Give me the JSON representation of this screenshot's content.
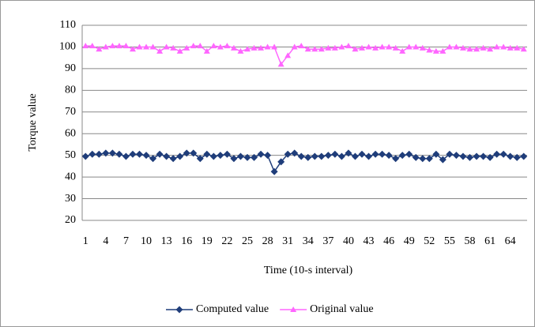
{
  "chart_data": {
    "type": "line",
    "x_label": "Time (10-s interval)",
    "y_label": "Torque value",
    "categories": [
      1,
      null,
      null,
      4,
      null,
      null,
      7,
      null,
      null,
      10,
      null,
      null,
      13,
      null,
      null,
      16,
      null,
      null,
      19,
      null,
      null,
      22,
      null,
      null,
      25,
      null,
      null,
      28,
      null,
      null,
      31,
      null,
      null,
      34,
      null,
      null,
      37,
      null,
      null,
      40,
      null,
      null,
      43,
      null,
      null,
      46,
      null,
      null,
      49,
      null,
      null,
      52,
      null,
      null,
      55,
      null,
      null,
      58,
      null,
      null,
      61,
      null,
      null,
      64,
      null,
      null
    ],
    "series": [
      {
        "name": "Computed value",
        "color": "#1f3d7a",
        "marker": "diamond",
        "values": [
          49.5,
          50.5,
          50.5,
          51,
          51,
          50.5,
          49.5,
          50.5,
          50.5,
          50,
          48.5,
          50.5,
          49.5,
          48.5,
          49.5,
          51,
          51,
          48.5,
          50.5,
          49.5,
          50,
          50.5,
          48.5,
          49.5,
          49,
          49,
          50.5,
          50,
          42.5,
          47,
          50.5,
          51,
          49.5,
          49,
          49.5,
          49.5,
          50,
          50.5,
          49.5,
          51,
          49.5,
          50.5,
          49.5,
          50.5,
          50.5,
          50,
          48.5,
          50,
          50.5,
          49,
          48.5,
          48.5,
          50.5,
          48,
          50.5,
          50,
          49.5,
          49,
          49.5,
          49.5,
          49,
          50.5,
          50.5,
          49.5,
          49,
          49.5
        ]
      },
      {
        "name": "Original value",
        "color": "#ff66ff",
        "marker": "triangle",
        "values": [
          100.5,
          100.5,
          99,
          100,
          100.5,
          100.5,
          100.5,
          99,
          100,
          100,
          100,
          98,
          100,
          99.5,
          98,
          99.5,
          100.5,
          100.5,
          98,
          100.5,
          100,
          100.5,
          99.5,
          98,
          99,
          99.5,
          99.5,
          100,
          100,
          92,
          96,
          100,
          100.5,
          99,
          99,
          99,
          99.5,
          99.5,
          100,
          100.5,
          99,
          99.5,
          100,
          99.5,
          100,
          100,
          99.5,
          98,
          100,
          100,
          99.5,
          98.5,
          98,
          98,
          100,
          100,
          99.5,
          99,
          99,
          99.5,
          99,
          100,
          100,
          99.5,
          99.5,
          99
        ]
      }
    ],
    "ylim": [
      20,
      110
    ],
    "yticks": [
      20,
      30,
      40,
      50,
      60,
      70,
      80,
      90,
      100,
      110
    ],
    "grid": true,
    "legend": "bottom"
  }
}
